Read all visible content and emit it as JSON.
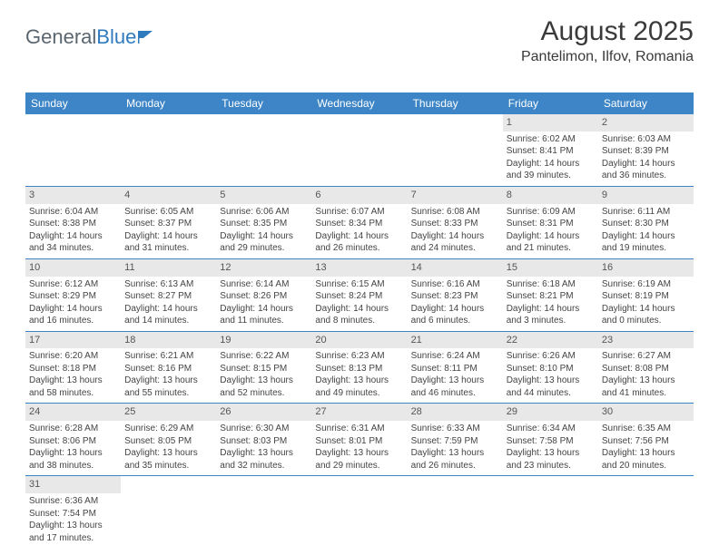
{
  "logo": {
    "part1": "General",
    "part2": "Blue"
  },
  "header": {
    "title": "August 2025",
    "subtitle": "Pantelimon, Ilfov, Romania"
  },
  "colors": {
    "header_bg": "#3d85c6",
    "header_text": "#ffffff",
    "daynum_bg": "#e8e8e8",
    "row_border": "#3d85c6",
    "body_text": "#444444",
    "logo_gray": "#5a6670",
    "logo_blue": "#2f7bbd",
    "page_bg": "#ffffff"
  },
  "weekdays": [
    "Sunday",
    "Monday",
    "Tuesday",
    "Wednesday",
    "Thursday",
    "Friday",
    "Saturday"
  ],
  "weeks": [
    [
      null,
      null,
      null,
      null,
      null,
      {
        "d": "1",
        "sr": "Sunrise: 6:02 AM",
        "ss": "Sunset: 8:41 PM",
        "dl1": "Daylight: 14 hours",
        "dl2": "and 39 minutes."
      },
      {
        "d": "2",
        "sr": "Sunrise: 6:03 AM",
        "ss": "Sunset: 8:39 PM",
        "dl1": "Daylight: 14 hours",
        "dl2": "and 36 minutes."
      }
    ],
    [
      {
        "d": "3",
        "sr": "Sunrise: 6:04 AM",
        "ss": "Sunset: 8:38 PM",
        "dl1": "Daylight: 14 hours",
        "dl2": "and 34 minutes."
      },
      {
        "d": "4",
        "sr": "Sunrise: 6:05 AM",
        "ss": "Sunset: 8:37 PM",
        "dl1": "Daylight: 14 hours",
        "dl2": "and 31 minutes."
      },
      {
        "d": "5",
        "sr": "Sunrise: 6:06 AM",
        "ss": "Sunset: 8:35 PM",
        "dl1": "Daylight: 14 hours",
        "dl2": "and 29 minutes."
      },
      {
        "d": "6",
        "sr": "Sunrise: 6:07 AM",
        "ss": "Sunset: 8:34 PM",
        "dl1": "Daylight: 14 hours",
        "dl2": "and 26 minutes."
      },
      {
        "d": "7",
        "sr": "Sunrise: 6:08 AM",
        "ss": "Sunset: 8:33 PM",
        "dl1": "Daylight: 14 hours",
        "dl2": "and 24 minutes."
      },
      {
        "d": "8",
        "sr": "Sunrise: 6:09 AM",
        "ss": "Sunset: 8:31 PM",
        "dl1": "Daylight: 14 hours",
        "dl2": "and 21 minutes."
      },
      {
        "d": "9",
        "sr": "Sunrise: 6:11 AM",
        "ss": "Sunset: 8:30 PM",
        "dl1": "Daylight: 14 hours",
        "dl2": "and 19 minutes."
      }
    ],
    [
      {
        "d": "10",
        "sr": "Sunrise: 6:12 AM",
        "ss": "Sunset: 8:29 PM",
        "dl1": "Daylight: 14 hours",
        "dl2": "and 16 minutes."
      },
      {
        "d": "11",
        "sr": "Sunrise: 6:13 AM",
        "ss": "Sunset: 8:27 PM",
        "dl1": "Daylight: 14 hours",
        "dl2": "and 14 minutes."
      },
      {
        "d": "12",
        "sr": "Sunrise: 6:14 AM",
        "ss": "Sunset: 8:26 PM",
        "dl1": "Daylight: 14 hours",
        "dl2": "and 11 minutes."
      },
      {
        "d": "13",
        "sr": "Sunrise: 6:15 AM",
        "ss": "Sunset: 8:24 PM",
        "dl1": "Daylight: 14 hours",
        "dl2": "and 8 minutes."
      },
      {
        "d": "14",
        "sr": "Sunrise: 6:16 AM",
        "ss": "Sunset: 8:23 PM",
        "dl1": "Daylight: 14 hours",
        "dl2": "and 6 minutes."
      },
      {
        "d": "15",
        "sr": "Sunrise: 6:18 AM",
        "ss": "Sunset: 8:21 PM",
        "dl1": "Daylight: 14 hours",
        "dl2": "and 3 minutes."
      },
      {
        "d": "16",
        "sr": "Sunrise: 6:19 AM",
        "ss": "Sunset: 8:19 PM",
        "dl1": "Daylight: 14 hours",
        "dl2": "and 0 minutes."
      }
    ],
    [
      {
        "d": "17",
        "sr": "Sunrise: 6:20 AM",
        "ss": "Sunset: 8:18 PM",
        "dl1": "Daylight: 13 hours",
        "dl2": "and 58 minutes."
      },
      {
        "d": "18",
        "sr": "Sunrise: 6:21 AM",
        "ss": "Sunset: 8:16 PM",
        "dl1": "Daylight: 13 hours",
        "dl2": "and 55 minutes."
      },
      {
        "d": "19",
        "sr": "Sunrise: 6:22 AM",
        "ss": "Sunset: 8:15 PM",
        "dl1": "Daylight: 13 hours",
        "dl2": "and 52 minutes."
      },
      {
        "d": "20",
        "sr": "Sunrise: 6:23 AM",
        "ss": "Sunset: 8:13 PM",
        "dl1": "Daylight: 13 hours",
        "dl2": "and 49 minutes."
      },
      {
        "d": "21",
        "sr": "Sunrise: 6:24 AM",
        "ss": "Sunset: 8:11 PM",
        "dl1": "Daylight: 13 hours",
        "dl2": "and 46 minutes."
      },
      {
        "d": "22",
        "sr": "Sunrise: 6:26 AM",
        "ss": "Sunset: 8:10 PM",
        "dl1": "Daylight: 13 hours",
        "dl2": "and 44 minutes."
      },
      {
        "d": "23",
        "sr": "Sunrise: 6:27 AM",
        "ss": "Sunset: 8:08 PM",
        "dl1": "Daylight: 13 hours",
        "dl2": "and 41 minutes."
      }
    ],
    [
      {
        "d": "24",
        "sr": "Sunrise: 6:28 AM",
        "ss": "Sunset: 8:06 PM",
        "dl1": "Daylight: 13 hours",
        "dl2": "and 38 minutes."
      },
      {
        "d": "25",
        "sr": "Sunrise: 6:29 AM",
        "ss": "Sunset: 8:05 PM",
        "dl1": "Daylight: 13 hours",
        "dl2": "and 35 minutes."
      },
      {
        "d": "26",
        "sr": "Sunrise: 6:30 AM",
        "ss": "Sunset: 8:03 PM",
        "dl1": "Daylight: 13 hours",
        "dl2": "and 32 minutes."
      },
      {
        "d": "27",
        "sr": "Sunrise: 6:31 AM",
        "ss": "Sunset: 8:01 PM",
        "dl1": "Daylight: 13 hours",
        "dl2": "and 29 minutes."
      },
      {
        "d": "28",
        "sr": "Sunrise: 6:33 AM",
        "ss": "Sunset: 7:59 PM",
        "dl1": "Daylight: 13 hours",
        "dl2": "and 26 minutes."
      },
      {
        "d": "29",
        "sr": "Sunrise: 6:34 AM",
        "ss": "Sunset: 7:58 PM",
        "dl1": "Daylight: 13 hours",
        "dl2": "and 23 minutes."
      },
      {
        "d": "30",
        "sr": "Sunrise: 6:35 AM",
        "ss": "Sunset: 7:56 PM",
        "dl1": "Daylight: 13 hours",
        "dl2": "and 20 minutes."
      }
    ],
    [
      {
        "d": "31",
        "sr": "Sunrise: 6:36 AM",
        "ss": "Sunset: 7:54 PM",
        "dl1": "Daylight: 13 hours",
        "dl2": "and 17 minutes."
      },
      null,
      null,
      null,
      null,
      null,
      null
    ]
  ]
}
